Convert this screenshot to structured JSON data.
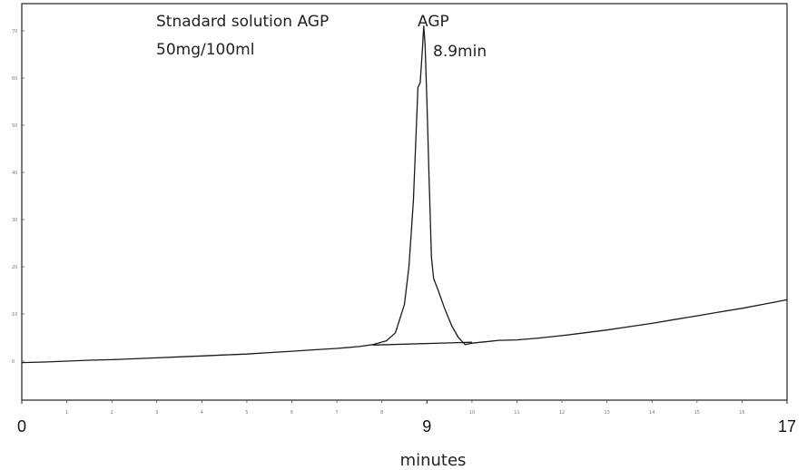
{
  "chart_data": {
    "type": "line",
    "title_lines": [
      "Stnadard solution AGP",
      "50mg/100ml"
    ],
    "peak_label": "AGP",
    "peak_time_label": "8.9min",
    "xlabel": "minutes",
    "xlim": [
      0,
      17
    ],
    "ylim": [
      -8,
      75
    ],
    "x_ticks_major": [
      "0",
      "9",
      "17"
    ],
    "x_ticks_minor": [
      "1",
      "2",
      "3",
      "4",
      "5",
      "6",
      "7",
      "8",
      "10",
      "11",
      "12",
      "13",
      "14",
      "15",
      "16"
    ],
    "y_tick_values": [
      0,
      10,
      20,
      30,
      40,
      50,
      60,
      70
    ],
    "y_ticks": [
      "0",
      "10",
      "20",
      "30",
      "40",
      "50",
      "60",
      "70"
    ],
    "series": [
      {
        "x": [
          0,
          0.5,
          1,
          1.5,
          2,
          2.5,
          3,
          3.5,
          4,
          4.5,
          5,
          5.5,
          6,
          6.5,
          7,
          7.5,
          7.8,
          8.1,
          8.3,
          8.5,
          8.6,
          8.7,
          8.8,
          8.85,
          8.9,
          8.93,
          8.96,
          9.0,
          9.05,
          9.1,
          9.15,
          9.25,
          9.4,
          9.55,
          9.7,
          9.85,
          10.0,
          10.3,
          10.6,
          11.0,
          11.5,
          12,
          12.5,
          13,
          13.5,
          14,
          14.5,
          15,
          15.5,
          16,
          16.5,
          17
        ],
        "y": [
          -0.3,
          -0.2,
          0,
          0.2,
          0.3,
          0.5,
          0.7,
          0.9,
          1.1,
          1.3,
          1.5,
          1.8,
          2.1,
          2.4,
          2.7,
          3.1,
          3.5,
          4.3,
          6.0,
          12.0,
          20.0,
          34.0,
          58.0,
          59.0,
          66.0,
          71.0,
          67.0,
          55.0,
          38.0,
          22.0,
          17.5,
          15.0,
          11.0,
          7.5,
          5.0,
          3.5,
          3.8,
          4.1,
          4.4,
          4.5,
          4.9,
          5.4,
          6.0,
          6.6,
          7.3,
          8.0,
          8.8,
          9.6,
          10.4,
          11.2,
          12.1,
          13.0
        ]
      },
      {
        "x": [
          7.8,
          10.0
        ],
        "y": [
          3.4,
          4.0
        ]
      }
    ]
  }
}
